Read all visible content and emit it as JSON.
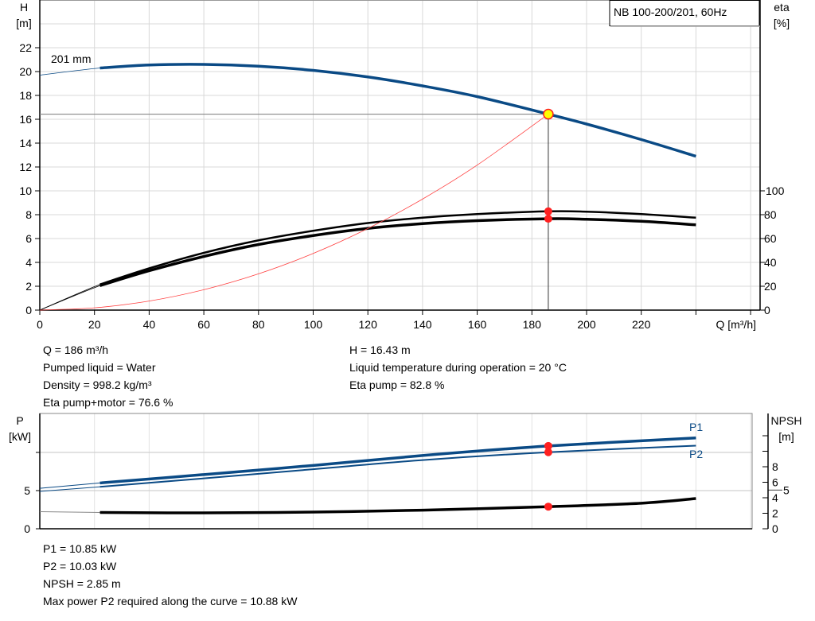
{
  "chart_data": [
    {
      "type": "line",
      "title": "NB 100-200/201, 60Hz",
      "impeller_label": "201 mm",
      "xlabel": "Q [m³/h]",
      "ylabel_left": [
        "H",
        "[m]"
      ],
      "ylabel_right": [
        "eta",
        "[%]"
      ],
      "xlim": [
        0,
        260
      ],
      "ylim_left": [
        0,
        26
      ],
      "ylim_right": [
        0,
        260
      ],
      "x_ticks": [
        "0",
        "20",
        "40",
        "60",
        "80",
        "100",
        "120",
        "140",
        "160",
        "180",
        "200",
        "220"
      ],
      "y_ticks_left": [
        "0",
        "2",
        "4",
        "6",
        "8",
        "10",
        "12",
        "14",
        "16",
        "18",
        "20",
        "22"
      ],
      "y_ticks_right": [
        "0",
        "20",
        "40",
        "60",
        "80",
        "100"
      ],
      "grid": true,
      "colors": {
        "head": "#0a4a85",
        "eta": "#000000",
        "system": "#ff4040",
        "marker": "#ff2020",
        "duty": "#ffff00"
      },
      "series": [
        {
          "key": "head",
          "axis": "left",
          "x": [
            0,
            22,
            40,
            60,
            80,
            100,
            120,
            140,
            160,
            186,
            200,
            220,
            240
          ],
          "y": [
            19.7,
            20.3,
            20.55,
            20.6,
            20.45,
            20.1,
            19.55,
            18.8,
            17.9,
            16.43,
            15.6,
            14.3,
            12.9
          ]
        },
        {
          "key": "eta_pump",
          "axis": "right",
          "x": [
            0,
            22,
            40,
            60,
            80,
            100,
            120,
            140,
            160,
            186,
            200,
            220,
            240
          ],
          "y": [
            0,
            21.5,
            35,
            48,
            58.5,
            66.5,
            73,
            77.5,
            80.5,
            82.8,
            82.5,
            80.5,
            77.5
          ]
        },
        {
          "key": "eta_pump_motor",
          "axis": "right",
          "x": [
            0,
            22,
            40,
            60,
            80,
            100,
            120,
            140,
            160,
            186,
            200,
            220,
            240
          ],
          "y": [
            0,
            20.5,
            33,
            45,
            55,
            62.5,
            68.5,
            72.5,
            75,
            76.6,
            76.2,
            74.5,
            71.5
          ]
        },
        {
          "key": "system",
          "axis": "left",
          "x": [
            0,
            20,
            40,
            60,
            80,
            100,
            120,
            140,
            160,
            186
          ],
          "y": [
            0,
            0.19,
            0.76,
            1.71,
            3.04,
            4.75,
            6.84,
            9.31,
            12.16,
            16.43
          ]
        }
      ],
      "duty_point": {
        "Q": 186,
        "H": 16.43,
        "eta_pump": 82.8,
        "eta_pump_motor": 76.6
      }
    },
    {
      "type": "line",
      "xlim": [
        0,
        260
      ],
      "ylabel_left": [
        "P",
        "[kW]"
      ],
      "ylabel_right": [
        "NPSH",
        "[m]"
      ],
      "ylim_left": [
        0,
        15.1
      ],
      "ylim_right": [
        0,
        14.9
      ],
      "y_ticks_left": [
        "0",
        "5"
      ],
      "y_ticks_right": [
        "0",
        "2",
        "4",
        "5",
        "6",
        "8"
      ],
      "grid": true,
      "series": [
        {
          "key": "P1",
          "name": "P1",
          "axis": "left",
          "color": "#0a4a85",
          "x": [
            0,
            22,
            60,
            100,
            140,
            186,
            240
          ],
          "y": [
            5.3,
            6.0,
            7.1,
            8.3,
            9.6,
            10.85,
            11.9
          ]
        },
        {
          "key": "P2",
          "name": "P2",
          "axis": "left",
          "color": "#0a4a85",
          "x": [
            0,
            22,
            60,
            100,
            140,
            186,
            240
          ],
          "y": [
            4.9,
            5.5,
            6.6,
            7.8,
            9.0,
            10.03,
            10.88
          ]
        },
        {
          "key": "NPSH",
          "axis": "right",
          "color": "#000000",
          "x": [
            0,
            22,
            60,
            100,
            140,
            186,
            220,
            240
          ],
          "y": [
            2.2,
            2.1,
            2.05,
            2.15,
            2.4,
            2.85,
            3.3,
            3.9
          ]
        }
      ],
      "duty_point": {
        "Q": 186,
        "P1": 10.85,
        "P2": 10.03,
        "NPSH": 2.85
      }
    }
  ],
  "info_upper": {
    "left": [
      "Q = 186 m³/h",
      "Pumped liquid = Water",
      "Density = 998.2 kg/m³",
      "Eta pump+motor = 76.6 %"
    ],
    "right": [
      "H = 16.43 m",
      "Liquid temperature during operation = 20 °C",
      "Eta pump = 82.8 %"
    ]
  },
  "info_lower": [
    "P1 = 10.85 kW",
    "P2 = 10.03 kW",
    "NPSH = 2.85 m",
    "Max power P2 required along the curve = 10.88 kW"
  ]
}
